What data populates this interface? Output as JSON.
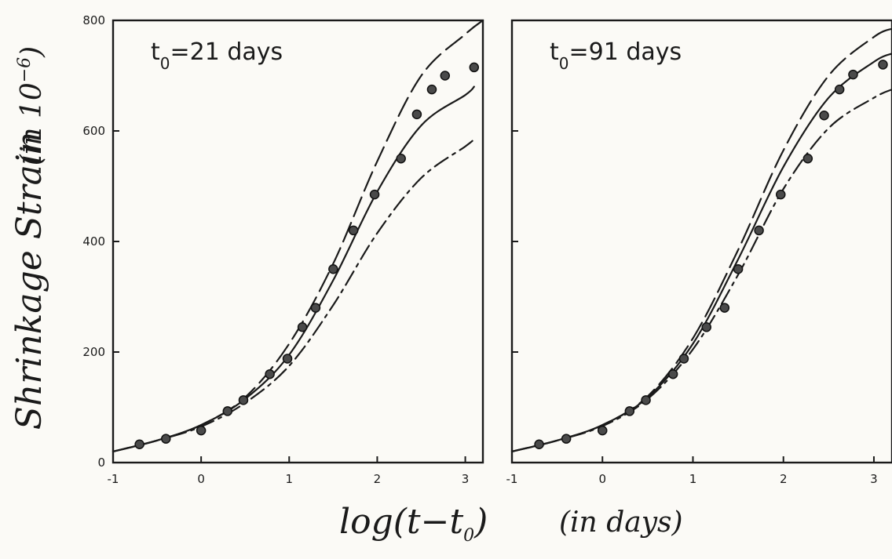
{
  "figure": {
    "y_axis_title": "Shrinkage Strain",
    "y_axis_unit_prefix": "(in 10",
    "y_axis_unit_exp": "−6",
    "y_axis_unit_suffix": ")",
    "x_axis_title_main": "log(t−t",
    "x_axis_title_sub": "0",
    "x_axis_title_close": ")",
    "x_axis_unit": "(in days)"
  },
  "chart_data": [
    {
      "type": "line",
      "panel_label": {
        "t": "t",
        "sub": "0",
        "text": "=21 days"
      },
      "xlim": [
        -1,
        3.2
      ],
      "ylim": [
        0,
        800
      ],
      "x_ticks": [
        "-1",
        "0",
        "1",
        "2",
        "3"
      ],
      "x_tick_values": [
        -1,
        0,
        1,
        2,
        3
      ],
      "y_ticks": [
        "0",
        "200",
        "400",
        "600",
        "800"
      ],
      "y_tick_values": [
        0,
        200,
        400,
        600,
        800
      ],
      "grid": false,
      "measured": {
        "x": [
          -0.7,
          -0.4,
          0.0,
          0.3,
          0.48,
          0.78,
          0.98,
          1.15,
          1.3,
          1.5,
          1.73,
          1.97,
          2.27,
          2.45,
          2.62,
          2.77,
          3.1
        ],
        "y": [
          33,
          43,
          58,
          93,
          113,
          160,
          188,
          245,
          280,
          350,
          420,
          485,
          550,
          630,
          675,
          700,
          715
        ]
      },
      "series": [
        {
          "style": "solid",
          "x": [
            -1,
            -0.5,
            0,
            0.5,
            1,
            1.5,
            2,
            2.5,
            3,
            3.1
          ],
          "y": [
            20,
            40,
            68,
            115,
            195,
            330,
            490,
            610,
            665,
            680
          ]
        },
        {
          "style": "longdash",
          "x": [
            -1,
            -0.5,
            0,
            0.5,
            1,
            1.5,
            2,
            2.5,
            3,
            3.2
          ],
          "y": [
            20,
            40,
            68,
            118,
            215,
            360,
            545,
            700,
            775,
            800
          ]
        },
        {
          "style": "dashdot",
          "x": [
            -1,
            -0.5,
            0,
            0.5,
            1,
            1.5,
            2,
            2.5,
            3,
            3.1
          ],
          "y": [
            20,
            40,
            65,
            108,
            175,
            285,
            415,
            515,
            572,
            585
          ]
        }
      ]
    },
    {
      "type": "line",
      "panel_label": {
        "t": "t",
        "sub": "0",
        "text": "=91 days"
      },
      "xlim": [
        -1,
        3.2
      ],
      "ylim": [
        0,
        800
      ],
      "x_ticks": [
        "-1",
        "0",
        "1",
        "2",
        "3"
      ],
      "x_tick_values": [
        -1,
        0,
        1,
        2,
        3
      ],
      "y_ticks": [
        "0",
        "200",
        "400",
        "600",
        "800"
      ],
      "y_tick_values": [
        0,
        200,
        400,
        600,
        800
      ],
      "grid": false,
      "measured": {
        "x": [
          -0.7,
          -0.4,
          0.0,
          0.3,
          0.48,
          0.78,
          0.9,
          1.15,
          1.35,
          1.5,
          1.73,
          1.97,
          2.27,
          2.45,
          2.62,
          2.77,
          3.1
        ],
        "y": [
          33,
          43,
          58,
          93,
          113,
          160,
          188,
          245,
          280,
          350,
          420,
          485,
          550,
          628,
          675,
          702,
          720
        ]
      },
      "series": [
        {
          "style": "solid",
          "x": [
            -1,
            -0.5,
            0,
            0.5,
            1,
            1.5,
            2,
            2.5,
            3,
            3.2
          ],
          "y": [
            20,
            40,
            68,
            118,
            215,
            368,
            535,
            660,
            725,
            740
          ]
        },
        {
          "style": "longdash",
          "x": [
            -1,
            -0.5,
            0,
            0.5,
            1,
            1.5,
            2,
            2.5,
            3,
            3.2
          ],
          "y": [
            20,
            40,
            68,
            120,
            225,
            385,
            565,
            700,
            770,
            785
          ]
        },
        {
          "style": "dashdot",
          "x": [
            -1,
            -0.5,
            0,
            0.5,
            1,
            1.5,
            2,
            2.5,
            3,
            3.2
          ],
          "y": [
            20,
            40,
            66,
            115,
            205,
            340,
            495,
            605,
            660,
            675
          ]
        }
      ]
    }
  ]
}
